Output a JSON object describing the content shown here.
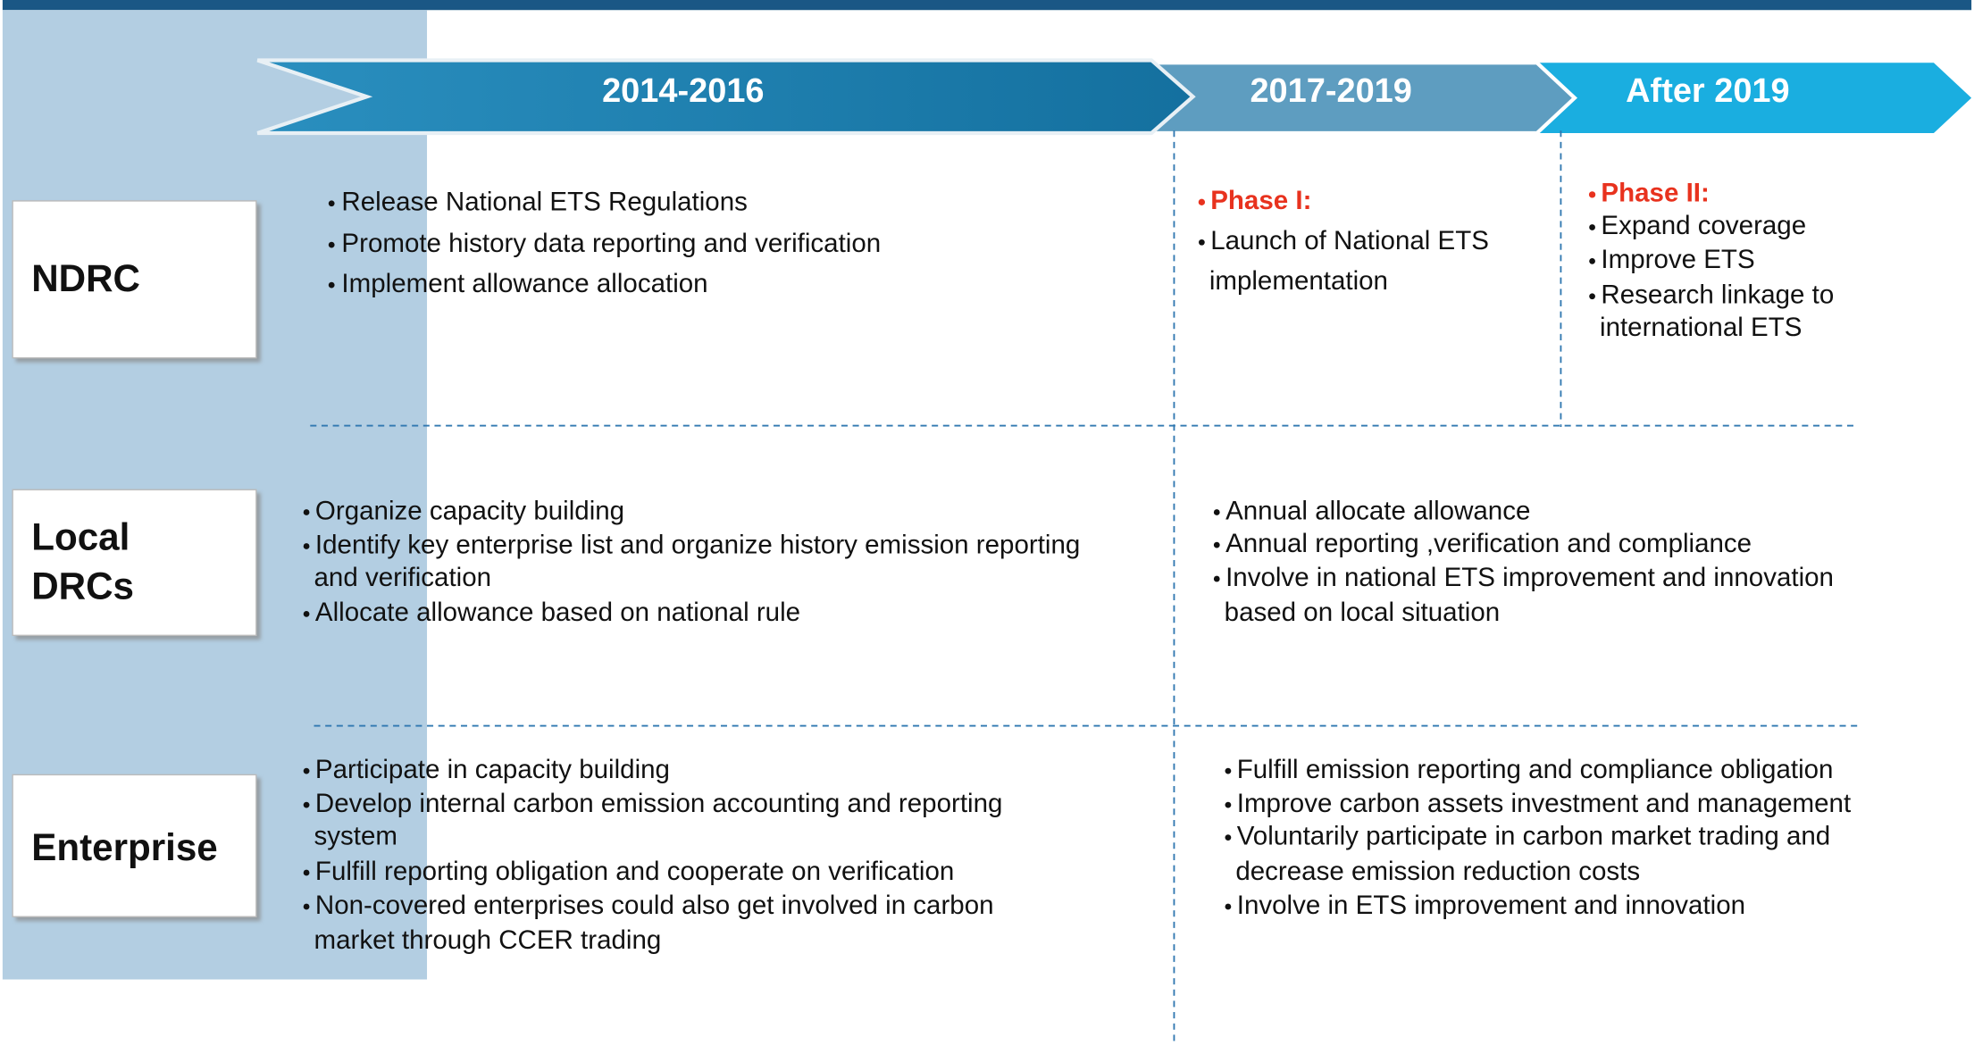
{
  "header": {
    "phases": [
      "2014-2016",
      "2017-2019",
      "After 2019"
    ]
  },
  "rows": [
    {
      "label": [
        "NDRC"
      ],
      "cells": [
        {
          "items": [
            [
              "Release National ETS Regulations"
            ],
            [
              "Promote history data reporting and verification"
            ],
            [
              "Implement allowance allocation"
            ]
          ]
        },
        {
          "heading": "Phase I:",
          "items": [
            [
              "Launch of National ETS",
              "implementation"
            ]
          ]
        },
        {
          "heading": "Phase II:",
          "items": [
            [
              "Expand coverage"
            ],
            [
              "Improve ETS"
            ],
            [
              "Research linkage to",
              "international ETS"
            ]
          ]
        }
      ]
    },
    {
      "label": [
        "Local",
        "DRCs"
      ],
      "cells": [
        {
          "items": [
            [
              "Organize capacity building"
            ],
            [
              "Identify key enterprise list and organize history emission reporting",
              "and verification"
            ],
            [
              "Allocate allowance based on national rule"
            ]
          ]
        },
        {
          "items": [
            [
              "Annual allocate allowance"
            ],
            [
              "Annual reporting ,verification and compliance"
            ],
            [
              "Involve in national  ETS improvement and innovation",
              "based on local situation"
            ]
          ]
        }
      ]
    },
    {
      "label": [
        "Enterprise"
      ],
      "cells": [
        {
          "items": [
            [
              "Participate in  capacity building"
            ],
            [
              "Develop internal carbon emission accounting and reporting",
              "system"
            ],
            [
              "Fulfill reporting obligation and cooperate on verification"
            ],
            [
              "Non-covered enterprises could also get involved in carbon",
              "market through CCER trading"
            ]
          ]
        },
        {
          "items": [
            [
              "Fulfill emission reporting and compliance obligation"
            ],
            [
              "Improve carbon assets  investment and management"
            ],
            [
              "Voluntarily participate in carbon market trading and",
              "decrease emission reduction costs"
            ],
            [
              "Involve in ETS improvement and innovation"
            ]
          ]
        }
      ]
    }
  ]
}
